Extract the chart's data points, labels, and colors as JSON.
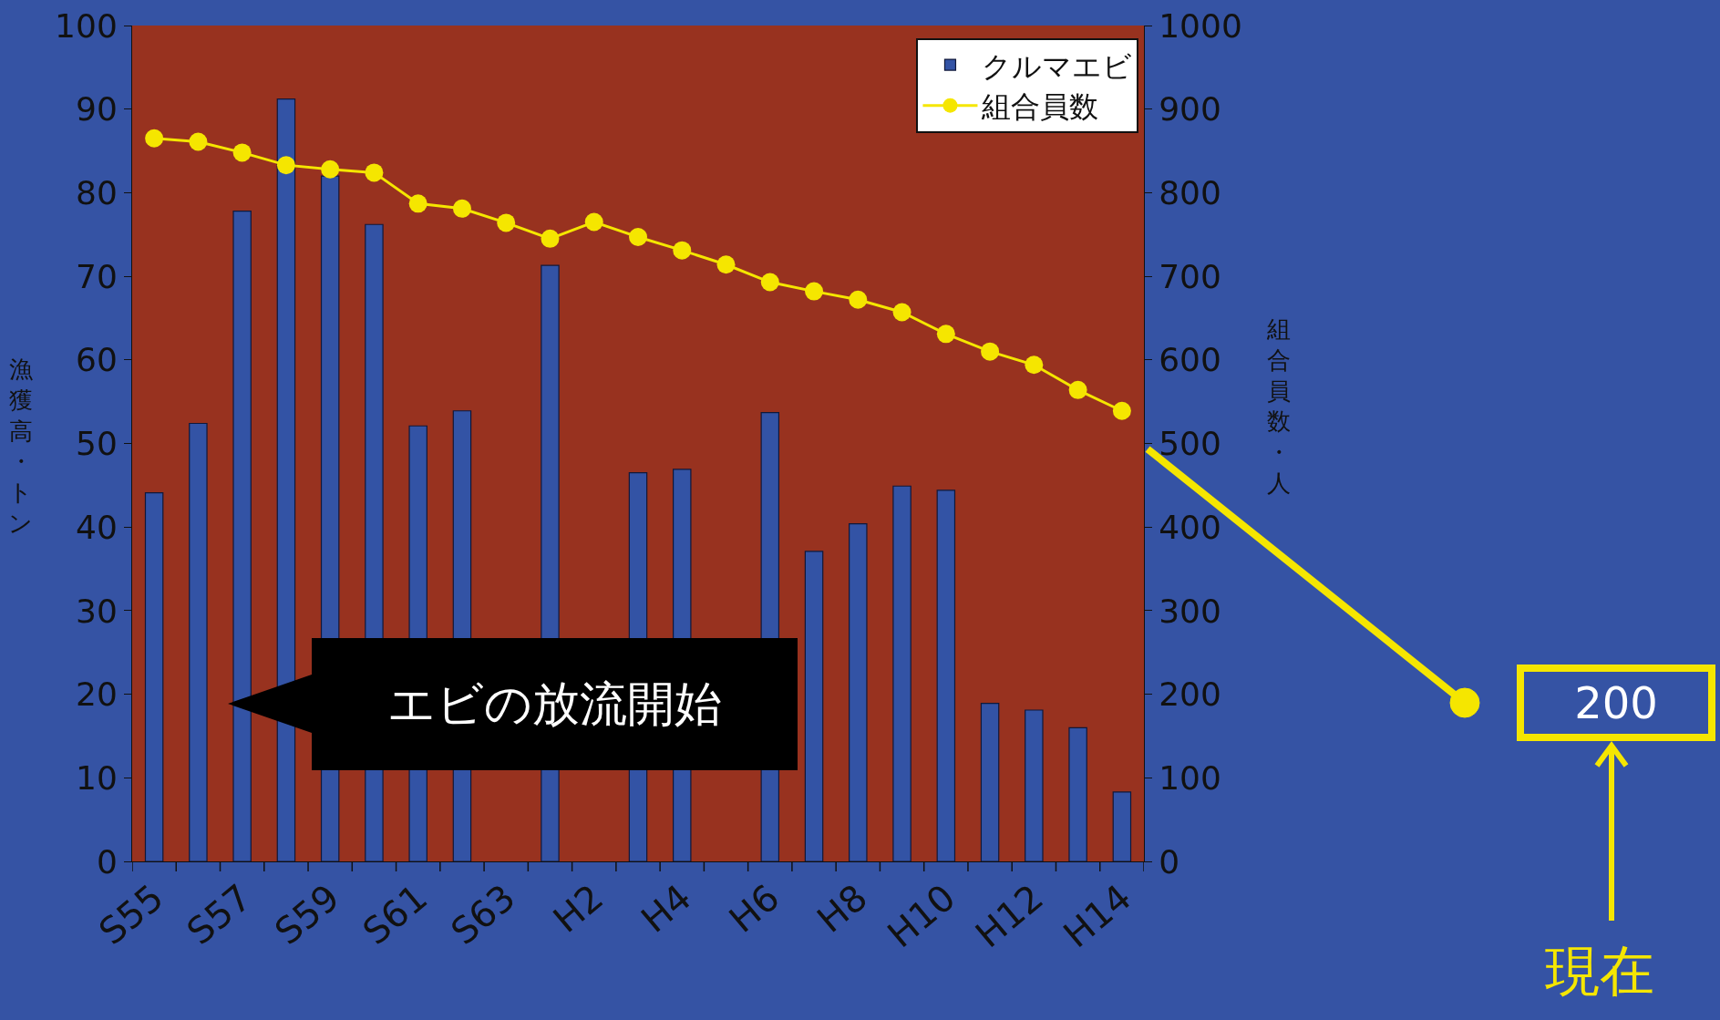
{
  "chart_data": {
    "type": "bar",
    "categories": [
      "S55",
      null,
      "S57",
      null,
      "S59",
      null,
      "S61",
      null,
      "S63",
      null,
      "H2",
      null,
      "H4",
      null,
      "H6",
      null,
      "H8",
      null,
      "H10",
      null,
      "H12",
      null,
      "H14"
    ],
    "ylabel": "漁獲高・トン",
    "y2label": "組合員数・人",
    "ylim": [
      0,
      100
    ],
    "yticks": [
      0,
      10,
      20,
      30,
      40,
      50,
      60,
      70,
      80,
      90,
      100
    ],
    "y2lim": [
      0,
      1000
    ],
    "y2ticks": [
      0,
      100,
      200,
      300,
      400,
      500,
      600,
      700,
      800,
      900,
      1000
    ],
    "series": [
      {
        "name": "クルマエビ",
        "color": "#3353a5",
        "values": [
          44.1,
          52.4,
          77.8,
          91.2,
          82,
          76.2,
          52.1,
          53.9,
          null,
          71.3,
          null,
          46.5,
          46.9,
          null,
          53.7,
          37.1,
          40.4,
          44.9,
          44.4,
          18.9,
          18.1,
          16.0,
          8.3
        ]
      },
      {
        "name": "組合員数",
        "type": "line",
        "axis": "y2",
        "color": "#f5e600",
        "marker": "circle",
        "values": [
          865,
          861,
          848,
          833,
          828,
          824,
          787,
          781,
          764,
          745,
          765,
          747,
          731,
          714,
          693,
          682,
          672,
          657,
          631,
          610,
          594,
          564,
          539
        ]
      }
    ],
    "annotations": [
      "エビの放流開始",
      "200",
      "現在"
    ],
    "legend": "top right",
    "grid": false
  }
}
